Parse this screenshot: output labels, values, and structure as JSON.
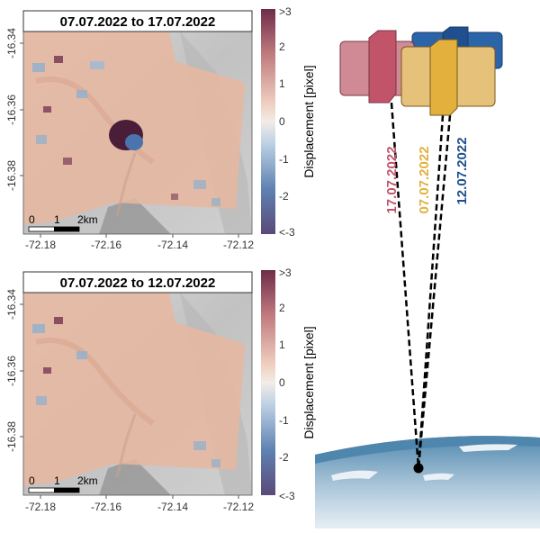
{
  "panels": [
    {
      "title": "07.07.2022 to 17.07.2022",
      "y_ticks": [
        "-16.34",
        "-16.36",
        "-16.38"
      ],
      "x_ticks": [
        "-72.18",
        "-72.16",
        "-72.14",
        "-72.12"
      ],
      "scalebar": {
        "ticks": [
          "0",
          "1",
          "2km"
        ]
      },
      "colorbar": {
        "label": "Displacement [pixel]",
        "ticks": [
          ">3",
          "2",
          "1",
          "0",
          "-1",
          "-2",
          "<-3"
        ]
      }
    },
    {
      "title": "07.07.2022 to 12.07.2022",
      "y_ticks": [
        "-16.34",
        "-16.36",
        "-16.38"
      ],
      "x_ticks": [
        "-72.18",
        "-72.16",
        "-72.14",
        "-72.12"
      ],
      "scalebar": {
        "ticks": [
          "0",
          "1",
          "2km"
        ]
      },
      "colorbar": {
        "label": "Displacement [pixel]",
        "ticks": [
          ">3",
          "2",
          "1",
          "0",
          "-1",
          "-2",
          "<-3"
        ]
      }
    }
  ],
  "satellites": [
    {
      "date": "17.07.2022",
      "color": "#c2546a"
    },
    {
      "date": "07.07.2022",
      "color": "#e3b03e"
    },
    {
      "date": "12.07.2022",
      "color": "#1f4f8f"
    }
  ],
  "colors": {
    "raster_orange": "#e6b7a0",
    "raster_blue": "#8fb0cf",
    "hillshade": "#c4c4c4",
    "sea": "#5b8fb5",
    "colorbar_top": "#6e2d4a",
    "colorbar_mid": "#f2ece7",
    "colorbar_bottom": "#5a4a78"
  }
}
